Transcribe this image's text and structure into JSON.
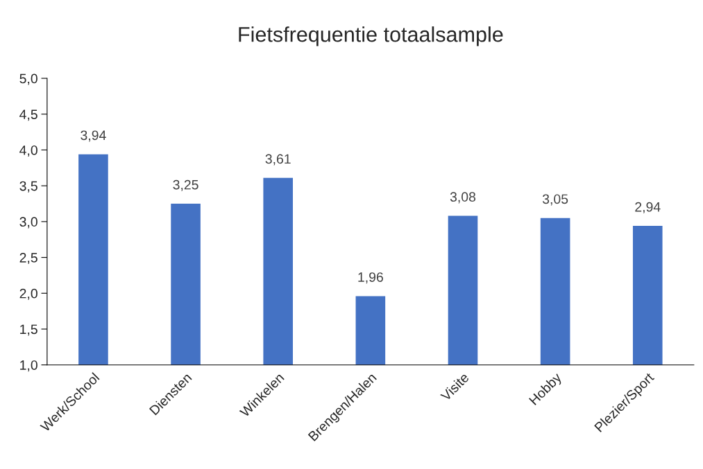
{
  "chart_data": {
    "type": "bar",
    "title": "Fietsfrequentie totaalsample",
    "categories": [
      "Werk/School",
      "Diensten",
      "Winkelen",
      "Brengen/Halen",
      "Visite",
      "Hobby",
      "Plezier/Sport"
    ],
    "values": [
      3.94,
      3.25,
      3.61,
      1.96,
      3.08,
      3.05,
      2.94
    ],
    "value_labels": [
      "3,94",
      "3,25",
      "3,61",
      "1,96",
      "3,08",
      "3,05",
      "2,94"
    ],
    "color": "#4472c4",
    "ylim": [
      1.0,
      5.0
    ],
    "yticks": [
      {
        "value": 1.0,
        "label": "1,0"
      },
      {
        "value": 1.5,
        "label": "1,5"
      },
      {
        "value": 2.0,
        "label": "2,0"
      },
      {
        "value": 2.5,
        "label": "2,5"
      },
      {
        "value": 3.0,
        "label": "3,0"
      },
      {
        "value": 3.5,
        "label": "3,5"
      },
      {
        "value": 4.0,
        "label": "4,0"
      },
      {
        "value": 4.5,
        "label": "4,5"
      },
      {
        "value": 5.0,
        "label": "5,0"
      }
    ],
    "grid": false,
    "legend": false
  }
}
